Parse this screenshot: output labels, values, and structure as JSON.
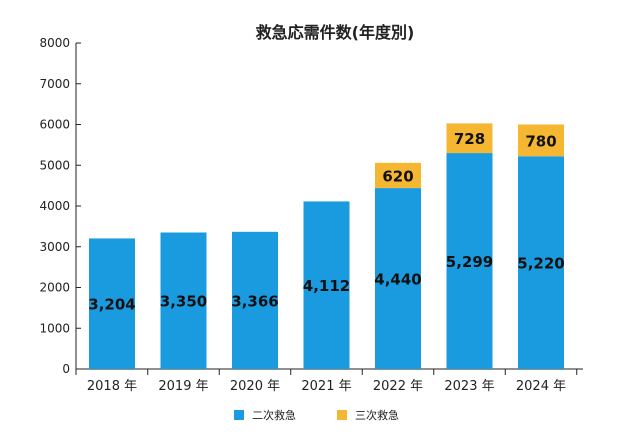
{
  "chart_data": {
    "type": "bar",
    "stacked": true,
    "title": "救急応需件数(年度別)",
    "categories": [
      "2018 年",
      "2019 年",
      "2020 年",
      "2021 年",
      "2022 年",
      "2023 年",
      "2024 年"
    ],
    "series": [
      {
        "name": "二次救急",
        "color": "#1a9be0",
        "values": [
          3204,
          3350,
          3366,
          4112,
          4440,
          5299,
          5220
        ],
        "labels": [
          "3,204",
          "3,350",
          "3,366",
          "4,112",
          "4,440",
          "5,299",
          "5,220"
        ]
      },
      {
        "name": "三次救急",
        "color": "#f5b731",
        "values": [
          0,
          0,
          0,
          0,
          620,
          728,
          780
        ],
        "labels": [
          "",
          "",
          "",
          "",
          "620",
          "728",
          "780"
        ]
      }
    ],
    "ylim": [
      0,
      8000
    ],
    "yticks": [
      "0",
      "1000",
      "2000",
      "3000",
      "4000",
      "5000",
      "6000",
      "7000",
      "8000"
    ],
    "grid": false,
    "legend": "bottom"
  }
}
